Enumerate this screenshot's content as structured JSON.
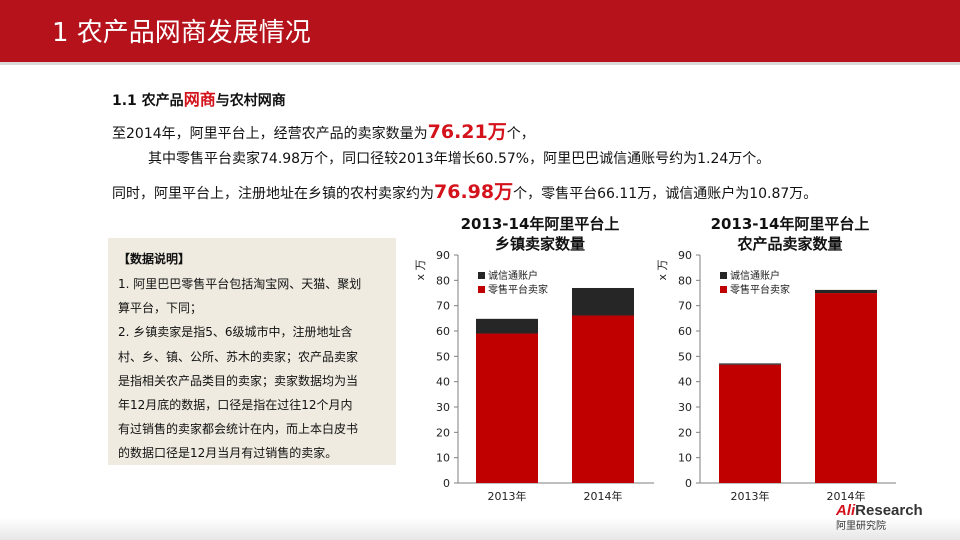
{
  "header": {
    "title": "1 农产品网商发展情况"
  },
  "subtitle": {
    "prefix": "1.1 农产品",
    "highlight": "网商",
    "suffix": "与农村网商"
  },
  "paragraph": {
    "line1": {
      "a": "至2014年，阿里平台上，经营农产品的卖家数量为",
      "b": "76.21万",
      "c": "个，"
    },
    "line2": "其中零售平台卖家74.98万个，同口径较2013年增长60.57%，阿里巴巴诚信通账号约为1.24万个。",
    "line3": {
      "a": "同时，阿里平台上，注册地址在乡镇的农村卖家约为",
      "b": "76.98万",
      "c": "个，零售平台66.11万，诚信通账户为10.87万。"
    }
  },
  "note": {
    "title": "【数据说明】",
    "lines": [
      "1. 阿里巴巴零售平台包括淘宝网、天猫、聚划",
      "算平台，下同；",
      "2. 乡镇卖家是指5、6级城市中，注册地址含",
      "村、乡、镇、公所、苏木的卖家；农产品卖家",
      "是指相关农产品类目的卖家；卖家数据均为当",
      "年12月底的数据，口径是指在过往12个月内",
      "有过销售的卖家都会统计在内，而上本白皮书",
      "的数据口径是12月当月有过销售的卖家。"
    ]
  },
  "colors": {
    "header": "#b5121b",
    "retail": "#c00000",
    "chengxin": "#262626",
    "highlight": "#d4121b"
  },
  "logo": {
    "en_prefix": "Ali",
    "en_suffix": "Research",
    "cn": "阿里研究院"
  },
  "chart_data": [
    {
      "type": "bar",
      "stacked": true,
      "title_line1": "2013-14年阿里平台上",
      "title_line2": "乡镇卖家数量",
      "ylabel": "x 万",
      "ylim": [
        0,
        90
      ],
      "yticks": [
        "0",
        "10",
        "20",
        "30",
        "40",
        "50",
        "60",
        "70",
        "80",
        "90"
      ],
      "categories": [
        "2013年",
        "2014年"
      ],
      "series": [
        {
          "name": "零售平台卖家",
          "values": [
            59.0,
            66.11
          ]
        },
        {
          "name": "诚信通账户",
          "values": [
            5.8,
            10.87
          ]
        }
      ],
      "legend": "top-left"
    },
    {
      "type": "bar",
      "stacked": true,
      "title_line1": "2013-14年阿里平台上",
      "title_line2": "农产品卖家数量",
      "ylabel": "x 万",
      "ylim": [
        0,
        90
      ],
      "yticks": [
        "0",
        "10",
        "20",
        "30",
        "40",
        "50",
        "60",
        "70",
        "80",
        "90"
      ],
      "categories": [
        "2013年",
        "2014年"
      ],
      "series": [
        {
          "name": "零售平台卖家",
          "values": [
            46.7,
            74.98
          ]
        },
        {
          "name": "诚信通账户",
          "values": [
            0.5,
            1.24
          ]
        }
      ],
      "legend": "top-left"
    }
  ]
}
